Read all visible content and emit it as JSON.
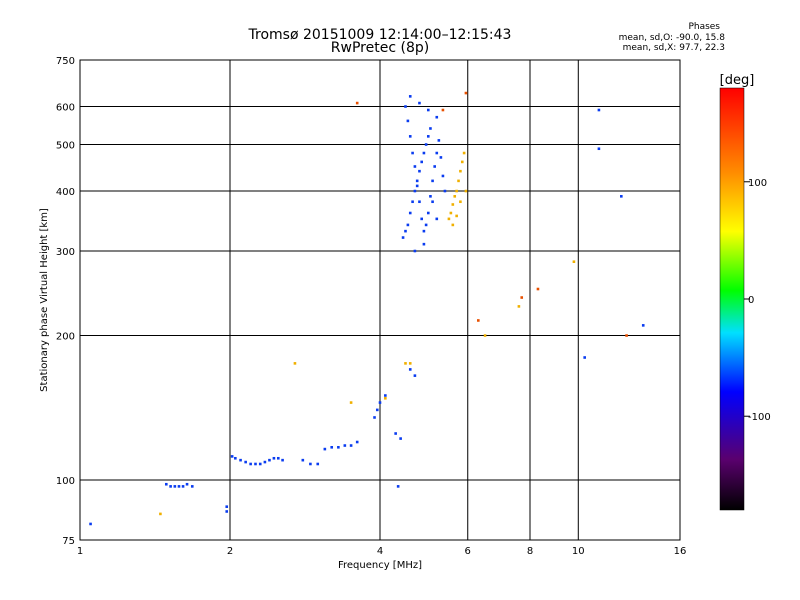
{
  "chart_data": {
    "type": "scatter",
    "title": "Tromsø 20151009 12:14:00–12:15:43",
    "subtitle": "RwPretec (8p)",
    "xlabel": "Frequency [MHz]",
    "ylabel": "Stationary phase Virtual Height [km]",
    "x_scale": "log",
    "y_scale": "log",
    "xlim": [
      1,
      16
    ],
    "ylim": [
      75,
      750
    ],
    "x_ticks": [
      1,
      2,
      4,
      6,
      8,
      10,
      16
    ],
    "x_tick_labels": [
      "1",
      "2",
      "4",
      "6",
      "8",
      "10",
      "16"
    ],
    "y_ticks": [
      75,
      100,
      200,
      300,
      400,
      500,
      600,
      750
    ],
    "y_tick_labels": [
      "75",
      "100",
      "200",
      "300",
      "400",
      "500",
      "600",
      "750"
    ],
    "grid": true,
    "colorbar": {
      "label": "[deg]",
      "range": [
        -180,
        180
      ],
      "tick_values": [
        -100,
        0,
        100
      ],
      "tick_labels": [
        "-100",
        "0",
        "100"
      ]
    },
    "phase_stats": {
      "title": "Phases",
      "o_line": "mean, sd,O: -90.0, 15.8",
      "x_line": "mean, sd,X:  97.7, 22.3"
    },
    "series": [
      {
        "color": "#0a3cf0",
        "phase_deg": -90,
        "points": [
          [
            1.05,
            81
          ],
          [
            1.49,
            98
          ],
          [
            1.52,
            97
          ],
          [
            1.55,
            97
          ],
          [
            1.58,
            97
          ],
          [
            1.61,
            97
          ],
          [
            1.64,
            98
          ],
          [
            1.68,
            97
          ],
          [
            1.97,
            86
          ],
          [
            1.97,
            88
          ],
          [
            2.02,
            112
          ],
          [
            2.05,
            111
          ],
          [
            2.1,
            110
          ],
          [
            2.15,
            109
          ],
          [
            2.2,
            108
          ],
          [
            2.25,
            108
          ],
          [
            2.3,
            108
          ],
          [
            2.35,
            109
          ],
          [
            2.4,
            110
          ],
          [
            2.45,
            111
          ],
          [
            2.5,
            111
          ],
          [
            2.55,
            110
          ],
          [
            2.8,
            110
          ],
          [
            2.9,
            108
          ],
          [
            3.0,
            108
          ],
          [
            3.1,
            116
          ],
          [
            3.2,
            117
          ],
          [
            3.3,
            117
          ],
          [
            3.4,
            118
          ],
          [
            3.5,
            118
          ],
          [
            3.6,
            120
          ],
          [
            3.9,
            135
          ],
          [
            3.95,
            140
          ],
          [
            4.0,
            145
          ],
          [
            4.1,
            150
          ],
          [
            4.3,
            125
          ],
          [
            4.35,
            97
          ],
          [
            4.4,
            122
          ],
          [
            4.6,
            170
          ],
          [
            4.7,
            165
          ],
          [
            4.45,
            320
          ],
          [
            4.5,
            330
          ],
          [
            4.55,
            340
          ],
          [
            4.6,
            360
          ],
          [
            4.65,
            380
          ],
          [
            4.7,
            400
          ],
          [
            4.75,
            420
          ],
          [
            4.8,
            440
          ],
          [
            4.85,
            460
          ],
          [
            4.9,
            480
          ],
          [
            4.95,
            500
          ],
          [
            5.0,
            520
          ],
          [
            5.05,
            540
          ],
          [
            4.5,
            600
          ],
          [
            4.55,
            560
          ],
          [
            4.6,
            520
          ],
          [
            4.65,
            480
          ],
          [
            4.7,
            450
          ],
          [
            4.75,
            410
          ],
          [
            4.8,
            380
          ],
          [
            4.85,
            350
          ],
          [
            4.9,
            330
          ],
          [
            4.95,
            340
          ],
          [
            5.0,
            360
          ],
          [
            5.05,
            390
          ],
          [
            5.1,
            420
          ],
          [
            5.15,
            450
          ],
          [
            5.2,
            480
          ],
          [
            5.25,
            510
          ],
          [
            5.3,
            470
          ],
          [
            5.35,
            430
          ],
          [
            5.4,
            400
          ],
          [
            4.6,
            630
          ],
          [
            4.8,
            610
          ],
          [
            5.0,
            590
          ],
          [
            5.2,
            570
          ],
          [
            4.7,
            300
          ],
          [
            4.9,
            310
          ],
          [
            5.1,
            380
          ],
          [
            5.2,
            350
          ],
          [
            10.3,
            180
          ],
          [
            11.0,
            590
          ],
          [
            11.0,
            490
          ],
          [
            12.2,
            390
          ],
          [
            13.5,
            210
          ]
        ]
      },
      {
        "color": "#f0b000",
        "phase_deg": 100,
        "points": [
          [
            1.45,
            85
          ],
          [
            2.7,
            175
          ],
          [
            3.5,
            145
          ],
          [
            4.5,
            175
          ],
          [
            4.6,
            175
          ],
          [
            4.1,
            148
          ],
          [
            5.5,
            350
          ],
          [
            5.55,
            360
          ],
          [
            5.6,
            375
          ],
          [
            5.65,
            390
          ],
          [
            5.7,
            400
          ],
          [
            5.75,
            420
          ],
          [
            5.8,
            440
          ],
          [
            5.85,
            460
          ],
          [
            5.9,
            480
          ],
          [
            5.95,
            400
          ],
          [
            5.6,
            340
          ],
          [
            5.7,
            355
          ],
          [
            5.8,
            380
          ],
          [
            6.5,
            200
          ],
          [
            7.6,
            230
          ],
          [
            9.8,
            285
          ]
        ]
      },
      {
        "color": "#e85000",
        "phase_deg": 160,
        "points": [
          [
            3.6,
            610
          ],
          [
            5.35,
            590
          ],
          [
            5.95,
            640
          ],
          [
            6.3,
            215
          ],
          [
            7.7,
            240
          ],
          [
            8.3,
            250
          ],
          [
            12.5,
            200
          ]
        ]
      }
    ]
  }
}
